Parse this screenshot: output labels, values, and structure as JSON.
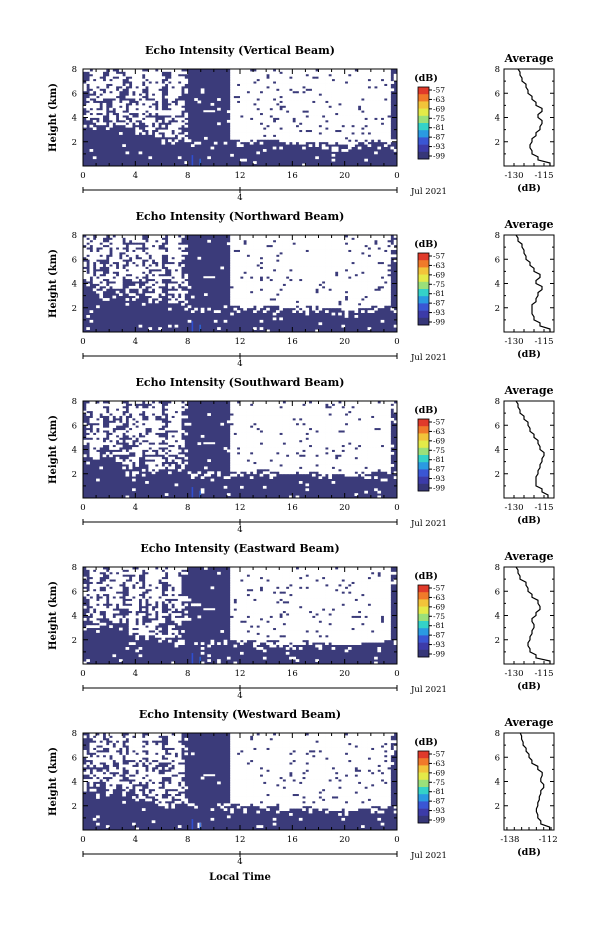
{
  "figure": {
    "xlabel": "Local Time",
    "date_label": "Jul 2021",
    "hour_ticks": [
      "0",
      "4",
      "8",
      "12",
      "16",
      "20",
      "0"
    ],
    "day_tick": "4",
    "height_ticks": [
      "2",
      "4",
      "6",
      "8"
    ],
    "ylabel": "Height (km)",
    "colorbar_unit": "(dB)",
    "colorbar_ticks": [
      "-57",
      "-63",
      "-69",
      "-75",
      "-81",
      "-87",
      "-93",
      "-99"
    ],
    "colorbar_colors": [
      "#e03a2a",
      "#f07a2a",
      "#f2c43a",
      "#e4ea48",
      "#9ae07a",
      "#34d2c8",
      "#2a9ae2",
      "#3a56d4",
      "#3c3ba8",
      "#363678"
    ],
    "background_echo_color": "#3b3b7a",
    "average_title": "Average",
    "average_xlabel": "(dB)"
  },
  "panels": [
    {
      "title": "Echo Intensity (Vertical Beam)",
      "avg_xticks": [
        "-130",
        "-115"
      ],
      "avg_xlim": [
        -135,
        -110
      ],
      "low_cloud_top_km": [
        3.6,
        3.4,
        3.8,
        3.0,
        2.7,
        2.6,
        2.4,
        2.5,
        2.2,
        2.0,
        2.1,
        2.2,
        2.1,
        2.3,
        2.2,
        2.0,
        1.9,
        2.1,
        2.0,
        1.9,
        1.8,
        2.0,
        2.1,
        2.2
      ],
      "chart_data": {
        "type": "heatmap",
        "x_range_hours": [
          0,
          24
        ],
        "ylim_km": [
          0,
          8
        ],
        "avg_profile": {
          "height_km": [
            0,
            0.5,
            1,
            1.5,
            2,
            2.5,
            3,
            3.5,
            4,
            4.5,
            5,
            5.5,
            6,
            6.5,
            7,
            7.5,
            8
          ],
          "db": [
            -112,
            -118,
            -121,
            -122,
            -121,
            -119,
            -117,
            -116,
            -118,
            -116,
            -119,
            -121,
            -123,
            -124,
            -126,
            -127,
            -128
          ]
        }
      }
    },
    {
      "title": "Echo Intensity (Northward Beam)",
      "avg_xticks": [
        "-130",
        "-115"
      ],
      "avg_xlim": [
        -135,
        -110
      ],
      "low_cloud_top_km": [
        3.8,
        3.3,
        3.6,
        3.1,
        2.8,
        2.6,
        2.5,
        2.4,
        2.2,
        2.1,
        2.2,
        2.3,
        2.1,
        2.2,
        2.3,
        2.1,
        2.0,
        2.2,
        2.1,
        2.0,
        1.9,
        2.1,
        2.2,
        2.3
      ],
      "chart_data": {
        "type": "heatmap",
        "x_range_hours": [
          0,
          24
        ],
        "ylim_km": [
          0,
          8
        ],
        "avg_profile": {
          "height_km": [
            0,
            0.5,
            1,
            1.5,
            2,
            2.5,
            3,
            3.5,
            4,
            4.5,
            5,
            5.5,
            6,
            6.5,
            7,
            7.5,
            8
          ],
          "db": [
            -112,
            -117,
            -120,
            -121,
            -121,
            -119,
            -118,
            -116,
            -119,
            -117,
            -120,
            -122,
            -124,
            -125,
            -126,
            -128,
            -129
          ]
        }
      }
    },
    {
      "title": "Echo Intensity (Southward Beam)",
      "avg_xticks": [
        "-130",
        "-115"
      ],
      "avg_xlim": [
        -135,
        -110
      ],
      "low_cloud_top_km": [
        3.4,
        3.2,
        3.5,
        2.9,
        2.6,
        2.5,
        2.4,
        2.6,
        2.3,
        2.2,
        2.1,
        2.3,
        2.2,
        2.4,
        2.3,
        2.1,
        2.0,
        2.2,
        2.1,
        2.0,
        1.9,
        2.1,
        2.2,
        2.3
      ],
      "chart_data": {
        "type": "heatmap",
        "x_range_hours": [
          0,
          24
        ],
        "ylim_km": [
          0,
          8
        ],
        "avg_profile": {
          "height_km": [
            0,
            0.5,
            1,
            1.5,
            2,
            2.5,
            3,
            3.5,
            4,
            4.5,
            5,
            5.5,
            6,
            6.5,
            7,
            7.5,
            8
          ],
          "db": [
            -113,
            -116,
            -119,
            -119,
            -118,
            -117,
            -116,
            -115,
            -117,
            -118,
            -120,
            -122,
            -123,
            -125,
            -127,
            -128,
            -129
          ]
        }
      }
    },
    {
      "title": "Echo Intensity (Eastward Beam)",
      "avg_xticks": [
        "-130",
        "-115"
      ],
      "avg_xlim": [
        -135,
        -110
      ],
      "low_cloud_top_km": [
        3.5,
        3.3,
        3.4,
        2.8,
        2.5,
        2.3,
        2.2,
        2.3,
        2.1,
        2.0,
        1.9,
        2.0,
        2.1,
        1.9,
        2.0,
        1.8,
        1.7,
        1.9,
        1.8,
        1.7,
        1.6,
        1.8,
        1.9,
        2.0
      ],
      "chart_data": {
        "type": "heatmap",
        "x_range_hours": [
          0,
          24
        ],
        "ylim_km": [
          0,
          8
        ],
        "avg_profile": {
          "height_km": [
            0,
            0.5,
            1,
            1.5,
            2,
            2.5,
            3,
            3.5,
            4,
            4.5,
            5,
            5.5,
            6,
            6.5,
            7,
            7.5,
            8
          ],
          "db": [
            -112,
            -119,
            -122,
            -123,
            -122,
            -121,
            -120,
            -121,
            -119,
            -117,
            -118,
            -121,
            -123,
            -124,
            -127,
            -128,
            -129
          ]
        }
      }
    },
    {
      "title": "Echo Intensity (Westward Beam)",
      "avg_xticks": [
        "-138",
        "-112"
      ],
      "avg_xlim": [
        -142,
        -108
      ],
      "low_cloud_top_km": [
        3.7,
        3.4,
        3.6,
        3.0,
        2.7,
        2.5,
        2.4,
        2.5,
        2.2,
        2.1,
        2.0,
        2.2,
        2.1,
        2.0,
        2.1,
        1.9,
        1.8,
        2.0,
        1.9,
        1.8,
        1.7,
        1.9,
        2.0,
        2.1
      ],
      "chart_data": {
        "type": "heatmap",
        "x_range_hours": [
          0,
          24
        ],
        "ylim_km": [
          0,
          8
        ],
        "avg_profile": {
          "height_km": [
            0,
            0.5,
            1,
            1.5,
            2,
            2.5,
            3,
            3.5,
            4,
            4.5,
            5,
            5.5,
            6,
            6.5,
            7,
            7.5,
            8
          ],
          "db": [
            -111,
            -117,
            -119,
            -120,
            -119,
            -118,
            -117,
            -115,
            -117,
            -116,
            -119,
            -123,
            -125,
            -127,
            -129,
            -130,
            -131
          ]
        }
      }
    }
  ]
}
